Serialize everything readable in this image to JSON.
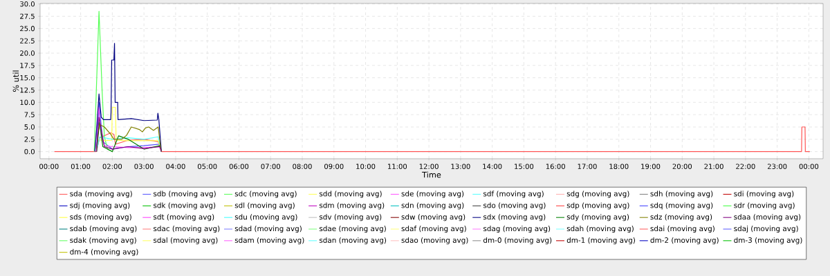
{
  "chart_data": {
    "type": "line",
    "xlabel": "Time",
    "ylabel": "% util",
    "xlim": [
      -0.28,
      24.45
    ],
    "ylim": [
      -1.45,
      30.1
    ],
    "xticks": [
      {
        "value": 0,
        "label": "00:00"
      },
      {
        "value": 1,
        "label": "01:00"
      },
      {
        "value": 2,
        "label": "02:00"
      },
      {
        "value": 3,
        "label": "03:00"
      },
      {
        "value": 4,
        "label": "04:00"
      },
      {
        "value": 5,
        "label": "05:00"
      },
      {
        "value": 6,
        "label": "06:00"
      },
      {
        "value": 7,
        "label": "07:00"
      },
      {
        "value": 8,
        "label": "08:00"
      },
      {
        "value": 9,
        "label": "09:00"
      },
      {
        "value": 10,
        "label": "10:00"
      },
      {
        "value": 11,
        "label": "11:00"
      },
      {
        "value": 12,
        "label": "12:00"
      },
      {
        "value": 13,
        "label": "13:00"
      },
      {
        "value": 14,
        "label": "14:00"
      },
      {
        "value": 15,
        "label": "15:00"
      },
      {
        "value": 16,
        "label": "16:00"
      },
      {
        "value": 17,
        "label": "17:00"
      },
      {
        "value": 18,
        "label": "18:00"
      },
      {
        "value": 19,
        "label": "19:00"
      },
      {
        "value": 20,
        "label": "20:00"
      },
      {
        "value": 21,
        "label": "21:00"
      },
      {
        "value": 22,
        "label": "22:00"
      },
      {
        "value": 23,
        "label": "23:00"
      },
      {
        "value": 24,
        "label": "00:00"
      }
    ],
    "yticks": [
      {
        "value": 0,
        "label": "0.0"
      },
      {
        "value": 2.5,
        "label": "2.5"
      },
      {
        "value": 5,
        "label": "5.0"
      },
      {
        "value": 7.5,
        "label": "7.5"
      },
      {
        "value": 10,
        "label": "10.0"
      },
      {
        "value": 12.5,
        "label": "12.5"
      },
      {
        "value": 15,
        "label": "15.0"
      },
      {
        "value": 17.5,
        "label": "17.5"
      },
      {
        "value": 20,
        "label": "20.0"
      },
      {
        "value": 22.5,
        "label": "22.5"
      },
      {
        "value": 25,
        "label": "25.0"
      },
      {
        "value": 27.5,
        "label": "27.5"
      },
      {
        "value": 30,
        "label": "30.0"
      }
    ],
    "grid": true,
    "legend": "bottom",
    "marker": "none",
    "line_style": "solid",
    "series": [
      {
        "name": "sda (moving avg)",
        "color": "#ff5555",
        "x": [
          0.17,
          1.5,
          1.6,
          1.95,
          2.05,
          2.1,
          2.5,
          3.0,
          3.45,
          3.55,
          23.77,
          23.78,
          23.88,
          23.89,
          24.03
        ],
        "values": [
          0,
          0,
          2.8,
          3.8,
          3.5,
          1.5,
          2.3,
          2.5,
          2.0,
          0,
          0,
          5,
          5,
          0,
          0
        ]
      },
      {
        "name": "sdb (moving avg)",
        "color": "#5555ff",
        "x": [
          1.5,
          1.58,
          1.7,
          2.0,
          2.5,
          3.0,
          3.5,
          3.55
        ],
        "values": [
          0,
          10,
          2,
          0.5,
          1.0,
          1.2,
          1.5,
          0
        ]
      },
      {
        "name": "sdc (moving avg)",
        "color": "#55ff55",
        "x": [
          1.43,
          1.58,
          1.68,
          1.75,
          1.85,
          2.0
        ],
        "values": [
          0,
          28.5,
          12,
          3,
          0.5,
          0
        ]
      },
      {
        "name": "sdd (moving avg)",
        "color": "#ffff55",
        "x": [
          1.5,
          1.55,
          1.7,
          1.98,
          2.0,
          2.1,
          2.12,
          2.5,
          3.45,
          3.55
        ],
        "values": [
          0,
          2.5,
          2.2,
          2.3,
          9,
          9,
          2.3,
          2.2,
          2.2,
          0
        ]
      },
      {
        "name": "sde (moving avg)",
        "color": "#ff55ff",
        "x": [
          1.45,
          1.57,
          1.65,
          1.75,
          2.0,
          2.5,
          3.0,
          3.5,
          3.55
        ],
        "values": [
          0,
          9,
          3,
          1.2,
          1,
          0.8,
          0.8,
          1,
          0
        ]
      },
      {
        "name": "sdf (moving avg)",
        "color": "#55ffff",
        "x": [
          1.5,
          1.6,
          2.0,
          2.5,
          3.0,
          3.45,
          3.55
        ],
        "values": [
          0,
          3,
          2.5,
          2.8,
          2.5,
          3,
          0
        ]
      },
      {
        "name": "sdg (moving avg)",
        "color": "#ffafaf",
        "values": [
          null
        ]
      },
      {
        "name": "sdh (moving avg)",
        "color": "#808080",
        "values": [
          null
        ]
      },
      {
        "name": "sdi (moving avg)",
        "color": "#c00000",
        "values": [
          null
        ]
      },
      {
        "name": "sdj (moving avg)",
        "color": "#0000c0",
        "values": [
          null
        ]
      },
      {
        "name": "sdk (moving avg)",
        "color": "#00c000",
        "values": [
          null
        ]
      },
      {
        "name": "sdl (moving avg)",
        "color": "#c0c000",
        "values": [
          null
        ]
      },
      {
        "name": "sdm (moving avg)",
        "color": "#c000c0",
        "values": [
          null
        ]
      },
      {
        "name": "sdn (moving avg)",
        "color": "#00c0c0",
        "values": [
          null
        ]
      },
      {
        "name": "sdo (moving avg)",
        "color": "#404040",
        "values": [
          null
        ]
      },
      {
        "name": "sdp (moving avg)",
        "color": "#ff4040",
        "values": [
          null
        ]
      },
      {
        "name": "sdq (moving avg)",
        "color": "#4040ff",
        "values": [
          null
        ]
      },
      {
        "name": "sdr (moving avg)",
        "color": "#40ff40",
        "values": [
          null
        ]
      },
      {
        "name": "sds (moving avg)",
        "color": "#ffff40",
        "values": [
          null
        ]
      },
      {
        "name": "sdt (moving avg)",
        "color": "#ff40ff",
        "values": [
          null
        ]
      },
      {
        "name": "sdu (moving avg)",
        "color": "#40ffff",
        "values": [
          null
        ]
      },
      {
        "name": "sdv (moving avg)",
        "color": "#c0c0c0",
        "values": [
          null
        ]
      },
      {
        "name": "sdw (moving avg)",
        "color": "#800000",
        "values": [
          null
        ]
      },
      {
        "name": "sdx (moving avg)",
        "color": "#000080",
        "x": [
          1.45,
          1.52,
          1.58,
          1.65,
          1.72,
          1.95,
          1.96,
          1.98,
          2.05,
          2.07,
          2.09,
          2.17,
          2.18,
          2.6,
          3.0,
          3.42,
          3.44,
          3.47,
          3.55
        ],
        "values": [
          0,
          6,
          11.7,
          7,
          6.5,
          6.5,
          8,
          18.6,
          18.6,
          22,
          10,
          10,
          6.5,
          6.7,
          6.3,
          6.4,
          7.8,
          6.5,
          0
        ]
      },
      {
        "name": "sdy (moving avg)",
        "color": "#008000",
        "x": [
          1.5,
          1.6,
          1.7,
          2.0,
          2.2,
          2.5,
          3.0,
          3.5,
          3.55
        ],
        "values": [
          0,
          6,
          1,
          0,
          3.2,
          2.5,
          0.5,
          1.2,
          0
        ]
      },
      {
        "name": "sdz (moving avg)",
        "color": "#808000",
        "x": [
          1.5,
          1.55,
          1.6,
          1.75,
          1.95,
          2.05,
          2.3,
          2.45,
          2.6,
          2.85,
          2.95,
          3.05,
          3.15,
          3.3,
          3.45,
          3.52,
          3.55
        ],
        "values": [
          0,
          4,
          5.5,
          5,
          3.5,
          2.5,
          2.5,
          3.3,
          5.0,
          4.5,
          4.0,
          4.8,
          5.0,
          4.3,
          5.0,
          1,
          0
        ]
      },
      {
        "name": "sdaa (moving avg)",
        "color": "#800080",
        "x": [
          1.5,
          1.58,
          1.75,
          2.0,
          2.5,
          3.0,
          3.5,
          3.55
        ],
        "values": [
          0,
          7,
          1,
          0.5,
          1.0,
          0.6,
          1.0,
          0
        ]
      },
      {
        "name": "sdab (moving avg)",
        "color": "#008080",
        "values": [
          null
        ]
      },
      {
        "name": "sdac (moving avg)",
        "color": "#ff8080",
        "values": [
          null
        ]
      },
      {
        "name": "sdad (moving avg)",
        "color": "#8080ff",
        "values": [
          null
        ]
      },
      {
        "name": "sdae (moving avg)",
        "color": "#80ff80",
        "values": [
          null
        ]
      },
      {
        "name": "sdaf (moving avg)",
        "color": "#ffff80",
        "values": [
          null
        ]
      },
      {
        "name": "sdag (moving avg)",
        "color": "#ff80ff",
        "values": [
          null
        ]
      },
      {
        "name": "sdah (moving avg)",
        "color": "#80ffff",
        "values": [
          null
        ]
      },
      {
        "name": "sdai (moving avg)",
        "color": "#ff6060",
        "values": [
          null
        ]
      },
      {
        "name": "sdaj (moving avg)",
        "color": "#6060ff",
        "values": [
          null
        ]
      },
      {
        "name": "sdak (moving avg)",
        "color": "#60ff60",
        "values": [
          null
        ]
      },
      {
        "name": "sdal (moving avg)",
        "color": "#ffff60",
        "values": [
          null
        ]
      },
      {
        "name": "sdam (moving avg)",
        "color": "#ff60ff",
        "values": [
          null
        ]
      },
      {
        "name": "sdan (moving avg)",
        "color": "#60ffff",
        "values": [
          null
        ]
      },
      {
        "name": "sdao (moving avg)",
        "color": "#ffc0c0",
        "values": [
          null
        ]
      },
      {
        "name": "dm-0 (moving avg)",
        "color": "#8c8c8c",
        "values": [
          null
        ]
      },
      {
        "name": "dm-1 (moving avg)",
        "color": "#c00000",
        "values": [
          null
        ]
      },
      {
        "name": "dm-2 (moving avg)",
        "color": "#0000c0",
        "values": [
          null
        ]
      },
      {
        "name": "dm-3 (moving avg)",
        "color": "#00c000",
        "values": [
          null
        ]
      },
      {
        "name": "dm-4 (moving avg)",
        "color": "#c0c000",
        "values": [
          null
        ]
      }
    ]
  }
}
